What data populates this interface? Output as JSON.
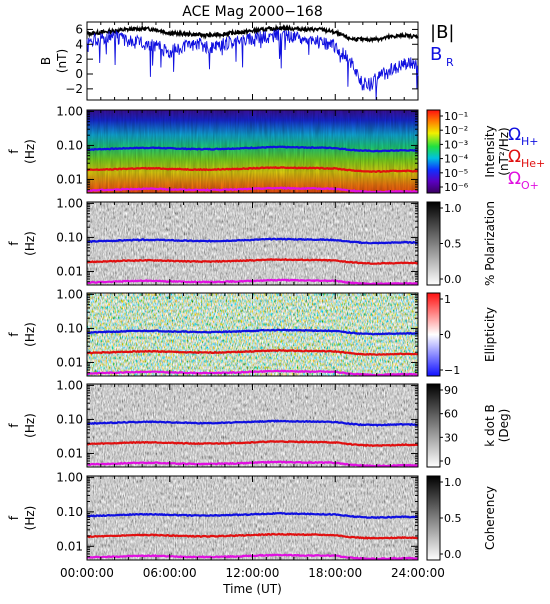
{
  "title": "ACE Mag 2000−168",
  "x_axis": {
    "label": "Time (UT)",
    "range_hours": [
      0,
      24
    ],
    "tick_labels": [
      "00:00:00",
      "06:00:00",
      "12:00:00",
      "18:00:00",
      "24:00:00"
    ]
  },
  "legend_top": {
    "items": [
      {
        "label": "|B|",
        "color": "#000000"
      },
      {
        "label": "B",
        "sub": "R",
        "color": "#1010e0"
      }
    ]
  },
  "freq_tick_labels": [
    "1.00",
    "0.10",
    "0.01"
  ],
  "panels": [
    {
      "id": "b-field",
      "ylabel": "B",
      "ylabel2": "(nT)",
      "ytick_labels": [
        "6",
        "4",
        "2",
        "0",
        "−2"
      ]
    },
    {
      "id": "intensity",
      "ylabel": "f",
      "ylabel2": "(Hz)",
      "colorbar_label": "Intensity",
      "colorbar_label2": "(nT²/Hz)",
      "colorbar_ticks": [
        "10⁻¹",
        "10⁻²",
        "10⁻³",
        "10⁻⁴",
        "10⁻⁵",
        "10⁻⁶"
      ]
    },
    {
      "id": "polarization",
      "ylabel": "f",
      "ylabel2": "(Hz)",
      "colorbar_label": "% Polarization",
      "colorbar_ticks": [
        "1.0",
        "0.5",
        "0.0"
      ]
    },
    {
      "id": "ellipticity",
      "ylabel": "f",
      "ylabel2": "(Hz)",
      "colorbar_label": "Ellipticity",
      "colorbar_ticks": [
        "1",
        "0",
        "−1"
      ]
    },
    {
      "id": "k-dot-b",
      "ylabel": "f",
      "ylabel2": "(Hz)",
      "colorbar_label": "k dot B",
      "colorbar_label2": "(Deg)",
      "colorbar_ticks": [
        "90",
        "60",
        "30",
        "0"
      ]
    },
    {
      "id": "coherency",
      "ylabel": "f",
      "ylabel2": "(Hz)",
      "colorbar_label": "Coherency",
      "colorbar_ticks": [
        "1.0",
        "0.5",
        "0.0"
      ]
    }
  ],
  "gyro_legend": [
    {
      "symbol": "Ω",
      "sub": "H+",
      "color": "#1010e0"
    },
    {
      "symbol": "Ω",
      "sub": "He+",
      "color": "#e01010"
    },
    {
      "symbol": "Ω",
      "sub": "O+",
      "color": "#e010e0"
    }
  ],
  "chart_data": {
    "type": "line",
    "title": "ACE Mag 2000−168",
    "xlabel": "Time (UT)",
    "x_hours": [
      0,
      1,
      2,
      3,
      4,
      5,
      6,
      7,
      8,
      9,
      10,
      11,
      12,
      13,
      14,
      15,
      16,
      17,
      18,
      19,
      20,
      21,
      22,
      23,
      24
    ],
    "b_panel": {
      "ylabel": "B (nT)",
      "ylim": [
        -3.5,
        7
      ],
      "series": [
        {
          "name": "|B|",
          "color": "#000000",
          "values": [
            5.4,
            5.6,
            5.8,
            6.0,
            6.1,
            6.0,
            5.5,
            5.4,
            5.3,
            5.2,
            5.4,
            5.6,
            5.8,
            6.0,
            6.2,
            6.1,
            6.0,
            6.0,
            5.6,
            4.8,
            4.6,
            4.7,
            5.0,
            5.2,
            5.0
          ]
        },
        {
          "name": "B",
          "name_sub": "R",
          "color": "#1010e0",
          "values": [
            4.5,
            4.8,
            5.0,
            4.4,
            4.2,
            3.8,
            3.0,
            3.6,
            4.2,
            3.4,
            4.0,
            4.6,
            4.8,
            5.0,
            5.2,
            5.0,
            4.6,
            4.2,
            3.8,
            2.0,
            -1.5,
            -0.5,
            0.5,
            1.5,
            1.5
          ]
        }
      ]
    },
    "spectrogram_panels": {
      "freq_range_hz": [
        0.004,
        1.1
      ],
      "freq_scale": "log",
      "gyrofrequencies_hz": [
        {
          "name": "ΩH+",
          "color": "#1010e0",
          "values": [
            0.075,
            0.078,
            0.08,
            0.083,
            0.085,
            0.085,
            0.082,
            0.08,
            0.078,
            0.078,
            0.08,
            0.082,
            0.085,
            0.088,
            0.09,
            0.088,
            0.087,
            0.086,
            0.084,
            0.075,
            0.07,
            0.068,
            0.07,
            0.072,
            0.07
          ]
        },
        {
          "name": "ΩHe+",
          "color": "#e01010",
          "values": [
            0.019,
            0.0195,
            0.02,
            0.0208,
            0.0212,
            0.0212,
            0.0205,
            0.02,
            0.0195,
            0.0195,
            0.02,
            0.0205,
            0.0212,
            0.022,
            0.0225,
            0.022,
            0.0218,
            0.0215,
            0.021,
            0.0188,
            0.0175,
            0.017,
            0.0175,
            0.018,
            0.0175
          ]
        },
        {
          "name": "ΩO+",
          "color": "#e010e0",
          "values": [
            0.0047,
            0.0049,
            0.005,
            0.0052,
            0.0053,
            0.0053,
            0.0051,
            0.005,
            0.0049,
            0.0049,
            0.005,
            0.0051,
            0.0053,
            0.0055,
            0.0056,
            0.0055,
            0.0054,
            0.0054,
            0.0053,
            0.0047,
            0.0044,
            0.0043,
            0.0044,
            0.0045,
            0.0044
          ]
        }
      ]
    }
  }
}
